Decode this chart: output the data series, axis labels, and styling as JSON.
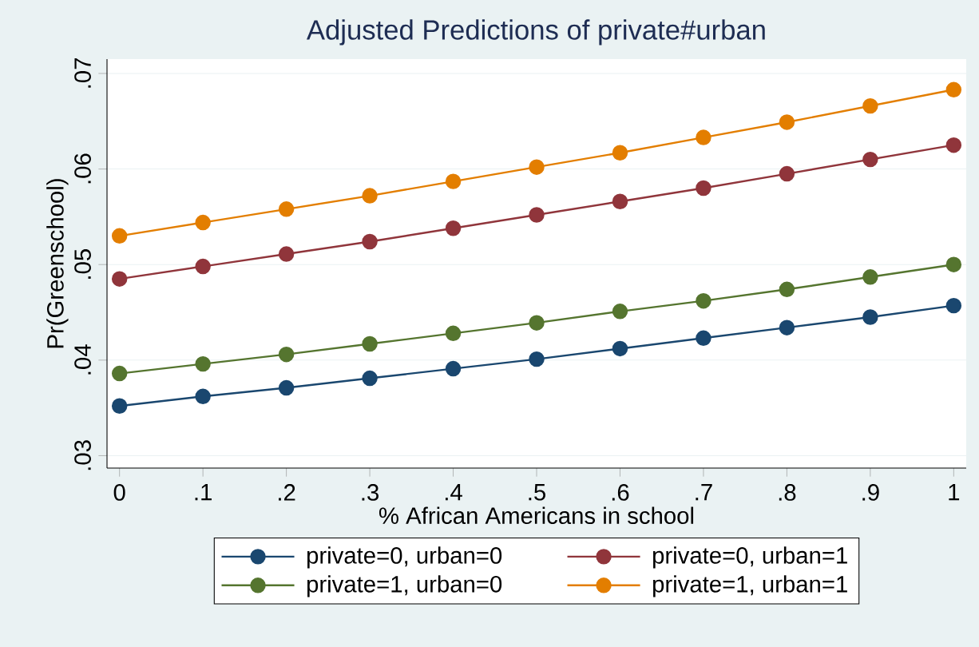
{
  "chart_data": {
    "type": "line",
    "title": "Adjusted Predictions of private#urban",
    "xlabel": "% African Americans in school",
    "ylabel": "Pr(Greenschool)",
    "x": [
      0,
      0.1,
      0.2,
      0.3,
      0.4,
      0.5,
      0.6,
      0.7,
      0.8,
      0.9,
      1
    ],
    "series": [
      {
        "name": "private=0, urban=0",
        "color": "#1a476f",
        "values": [
          0.0352,
          0.0362,
          0.0371,
          0.0381,
          0.0391,
          0.0401,
          0.0412,
          0.0423,
          0.0434,
          0.0445,
          0.0457
        ]
      },
      {
        "name": "private=0, urban=1",
        "color": "#90353b",
        "values": [
          0.0485,
          0.0498,
          0.0511,
          0.0524,
          0.0538,
          0.0552,
          0.0566,
          0.058,
          0.0595,
          0.061,
          0.0625
        ]
      },
      {
        "name": "private=1, urban=0",
        "color": "#55752f",
        "values": [
          0.0386,
          0.0396,
          0.0406,
          0.0417,
          0.0428,
          0.0439,
          0.0451,
          0.0462,
          0.0474,
          0.0487,
          0.05
        ]
      },
      {
        "name": "private=1, urban=1",
        "color": "#e37e00",
        "values": [
          0.053,
          0.0544,
          0.0558,
          0.0572,
          0.0587,
          0.0602,
          0.0617,
          0.0633,
          0.0649,
          0.0666,
          0.0683
        ]
      }
    ],
    "xlim": [
      -0.015,
      1.015
    ],
    "ylim": [
      0.0287,
      0.0715
    ],
    "xticks": [
      0,
      {
        "value": 0.1,
        "label": ".1"
      },
      {
        "value": 0.2,
        "label": ".2"
      },
      {
        "value": 0.3,
        "label": ".3"
      },
      {
        "value": 0.4,
        "label": ".4"
      },
      {
        "value": 0.5,
        "label": ".5"
      },
      {
        "value": 0.6,
        "label": ".6"
      },
      {
        "value": 0.7,
        "label": ".7"
      },
      {
        "value": 0.8,
        "label": ".8"
      },
      {
        "value": 0.9,
        "label": ".9"
      },
      1
    ],
    "yticks": [
      {
        "value": 0.03,
        "label": ".03"
      },
      {
        "value": 0.04,
        "label": ".04"
      },
      {
        "value": 0.05,
        "label": ".05"
      },
      {
        "value": 0.06,
        "label": ".06"
      },
      {
        "value": 0.07,
        "label": ".07"
      }
    ],
    "grid": "y",
    "legend": "bottom",
    "marker": "circle",
    "line_style": "solid"
  }
}
